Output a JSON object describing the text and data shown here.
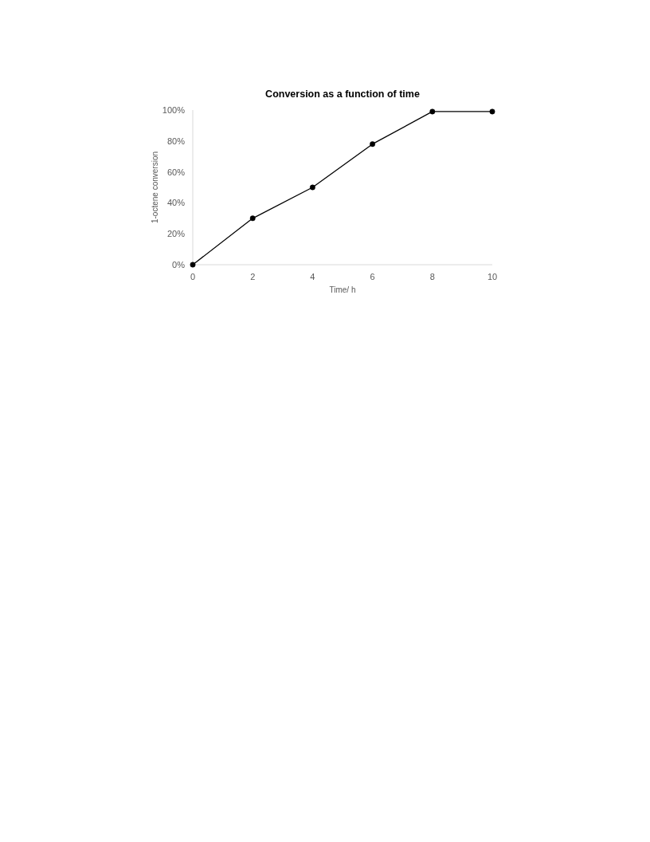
{
  "chart_data": {
    "type": "line",
    "title": "Conversion as a function of time",
    "xlabel": "Time/ h",
    "ylabel": "1-octene conversion",
    "x": [
      0,
      2,
      4,
      6,
      8,
      10
    ],
    "series": [
      {
        "color": "#000000",
        "values": [
          0,
          30,
          50,
          78,
          99,
          99
        ]
      }
    ],
    "xlim": [
      0,
      10
    ],
    "xticks": [
      0,
      2,
      4,
      6,
      8,
      10
    ],
    "ylim": [
      0,
      100
    ],
    "yticks": [
      {
        "value": 0,
        "label": "0%"
      },
      {
        "value": 20,
        "label": "20%"
      },
      {
        "value": 40,
        "label": "40%"
      },
      {
        "value": 60,
        "label": "60%"
      },
      {
        "value": 80,
        "label": "80%"
      },
      {
        "value": 100,
        "label": "100%"
      }
    ],
    "marker": "circle",
    "line_style": "solid",
    "grid": false
  }
}
